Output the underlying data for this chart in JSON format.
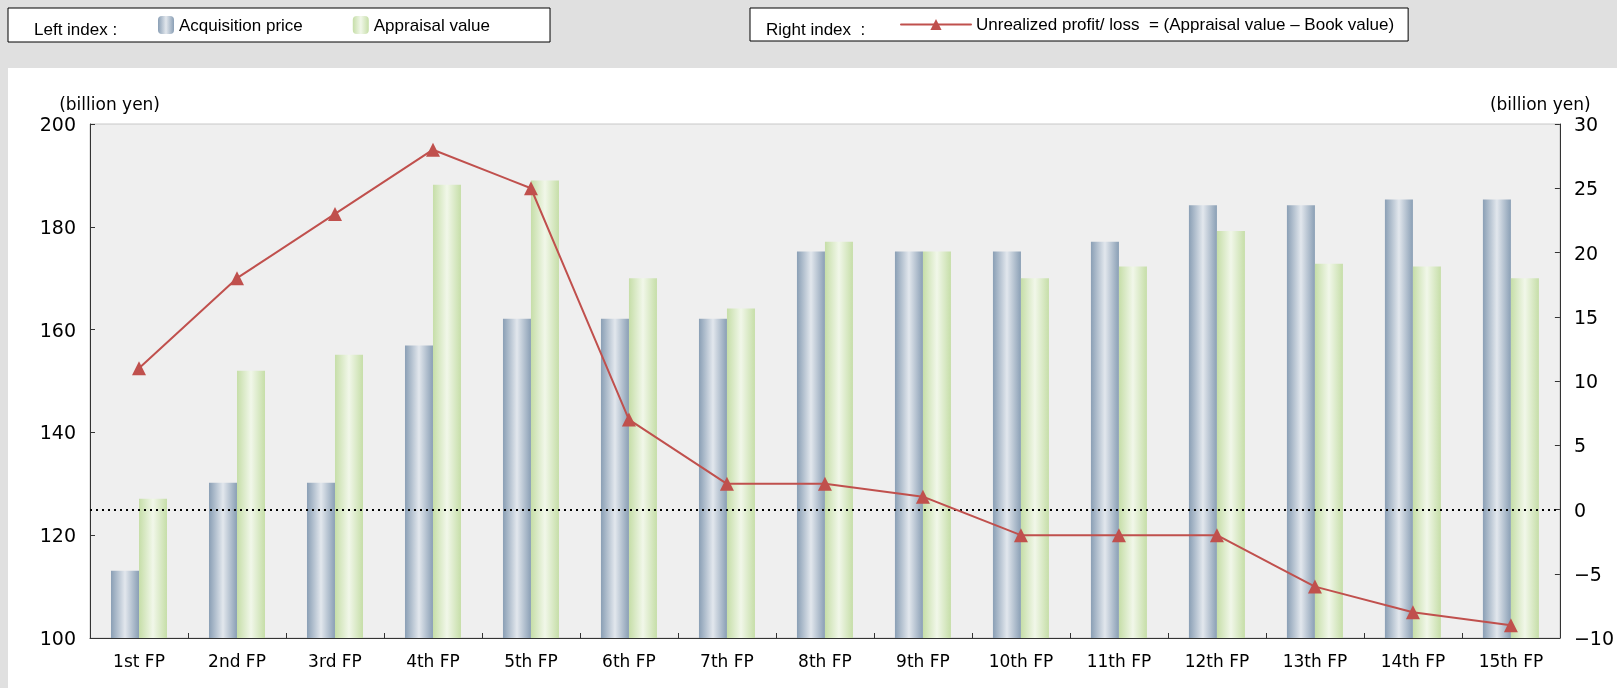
{
  "chart_data": {
    "type": "bar",
    "ylabel": "(billion yen)",
    "y2label": "(billion yen)",
    "categories": [
      "1st FP",
      "2nd FP",
      "3rd FP",
      "4th FP",
      "5th FP",
      "6th FP",
      "7th FP",
      "8th FP",
      "9th FP",
      "10th FP",
      "11th FP",
      "12th FP",
      "13th FP",
      "14th FP",
      "15th FP"
    ],
    "series": [
      {
        "name": "Acquisition price",
        "color": "#8a9fb5",
        "values": [
          113.1,
          130.2,
          130.2,
          156.9,
          162.1,
          162.1,
          162.1,
          175.2,
          175.2,
          175.2,
          177.1,
          184.2,
          184.2,
          185.3,
          185.3
        ]
      },
      {
        "name": "Appraisal value",
        "color": "#c6dea8",
        "values": [
          127.1,
          152.0,
          155.1,
          188.2,
          189.0,
          170.0,
          164.1,
          177.1,
          175.2,
          170.0,
          172.3,
          179.2,
          172.8,
          172.3,
          170.0
        ]
      },
      {
        "name": "Unrealized profit/ loss  = (Appraisal value – Book value)",
        "type": "line",
        "axis": "y2",
        "color": "#c0504d",
        "marker": "triangle",
        "values": [
          11,
          18,
          23,
          28,
          25,
          7,
          2,
          2,
          1,
          -2,
          -2,
          -2,
          -6,
          -8,
          -9
        ]
      }
    ],
    "ylim": [
      100,
      200
    ],
    "yticks": [
      100,
      120,
      140,
      160,
      180,
      200
    ],
    "y2lim": [
      -10,
      30
    ],
    "y2ticks": [
      {
        "value": -10,
        "label": "−10"
      },
      {
        "value": -5,
        "label": "−5"
      },
      0,
      5,
      10,
      15,
      20,
      25,
      30
    ],
    "ref_lines": [
      {
        "axis": "y2",
        "value": 0,
        "color": "#000000",
        "line_style": "dotted"
      }
    ],
    "annotations": [
      "Left index :",
      "Right index  :"
    ],
    "legend": "top",
    "grid": false
  }
}
